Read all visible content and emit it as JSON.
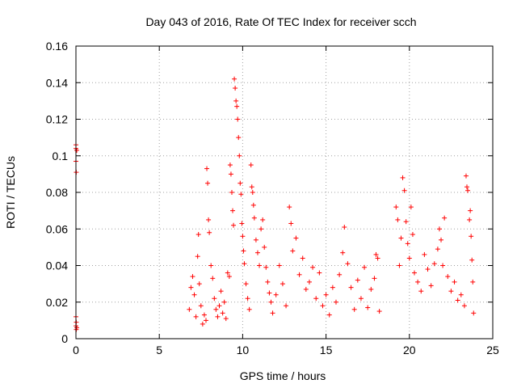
{
  "chart_data": {
    "type": "scatter",
    "title": "Day 043 of 2016, Rate Of TEC Index for receiver scch",
    "xlabel": "GPS time / hours",
    "ylabel": "ROTI / TECUs",
    "xlim": [
      0,
      25
    ],
    "ylim": [
      0,
      0.16
    ],
    "xticks": [
      0,
      5,
      10,
      15,
      20,
      25
    ],
    "xtick_labels": [
      "0",
      "5",
      "10",
      "15",
      "20",
      "25"
    ],
    "yticks": [
      0,
      0.02,
      0.04,
      0.06,
      0.08,
      0.1,
      0.12,
      0.14,
      0.16
    ],
    "ytick_labels": [
      "0",
      "0.02",
      "0.04",
      "0.06",
      "0.08",
      "0.1",
      "0.12",
      "0.14",
      "0.16"
    ],
    "grid": true,
    "marker": "+",
    "series": [
      {
        "name": "ROTI",
        "color": "#ff0000",
        "points": [
          [
            0.0,
            0.106
          ],
          [
            0.0,
            0.104
          ],
          [
            0.05,
            0.103
          ],
          [
            0.0,
            0.097
          ],
          [
            0.02,
            0.091
          ],
          [
            0.0,
            0.012
          ],
          [
            0.02,
            0.009
          ],
          [
            0.0,
            0.007
          ],
          [
            0.05,
            0.006
          ],
          [
            0.02,
            0.005
          ],
          [
            6.8,
            0.016
          ],
          [
            6.9,
            0.028
          ],
          [
            7.0,
            0.034
          ],
          [
            7.1,
            0.024
          ],
          [
            7.2,
            0.012
          ],
          [
            7.3,
            0.045
          ],
          [
            7.35,
            0.057
          ],
          [
            7.4,
            0.03
          ],
          [
            7.5,
            0.018
          ],
          [
            7.6,
            0.008
          ],
          [
            7.7,
            0.013
          ],
          [
            7.8,
            0.01
          ],
          [
            7.85,
            0.093
          ],
          [
            7.9,
            0.085
          ],
          [
            7.95,
            0.065
          ],
          [
            8.0,
            0.058
          ],
          [
            8.1,
            0.04
          ],
          [
            8.2,
            0.033
          ],
          [
            8.3,
            0.022
          ],
          [
            8.4,
            0.016
          ],
          [
            8.5,
            0.012
          ],
          [
            8.6,
            0.018
          ],
          [
            8.7,
            0.026
          ],
          [
            8.8,
            0.014
          ],
          [
            8.9,
            0.02
          ],
          [
            9.0,
            0.011
          ],
          [
            9.1,
            0.036
          ],
          [
            9.2,
            0.034
          ],
          [
            9.25,
            0.095
          ],
          [
            9.3,
            0.09
          ],
          [
            9.35,
            0.08
          ],
          [
            9.4,
            0.07
          ],
          [
            9.45,
            0.062
          ],
          [
            9.5,
            0.142
          ],
          [
            9.55,
            0.137
          ],
          [
            9.6,
            0.13
          ],
          [
            9.65,
            0.127
          ],
          [
            9.7,
            0.12
          ],
          [
            9.75,
            0.11
          ],
          [
            9.8,
            0.1
          ],
          [
            9.85,
            0.085
          ],
          [
            9.9,
            0.079
          ],
          [
            9.95,
            0.063
          ],
          [
            10.0,
            0.056
          ],
          [
            10.05,
            0.048
          ],
          [
            10.1,
            0.041
          ],
          [
            10.2,
            0.03
          ],
          [
            10.3,
            0.022
          ],
          [
            10.4,
            0.016
          ],
          [
            10.5,
            0.095
          ],
          [
            10.55,
            0.083
          ],
          [
            10.6,
            0.08
          ],
          [
            10.65,
            0.073
          ],
          [
            10.7,
            0.066
          ],
          [
            10.8,
            0.054
          ],
          [
            10.9,
            0.047
          ],
          [
            11.0,
            0.04
          ],
          [
            11.1,
            0.06
          ],
          [
            11.2,
            0.065
          ],
          [
            11.3,
            0.05
          ],
          [
            11.4,
            0.039
          ],
          [
            11.5,
            0.031
          ],
          [
            11.6,
            0.025
          ],
          [
            11.7,
            0.02
          ],
          [
            11.8,
            0.014
          ],
          [
            12.0,
            0.024
          ],
          [
            12.2,
            0.04
          ],
          [
            12.4,
            0.03
          ],
          [
            12.6,
            0.018
          ],
          [
            12.8,
            0.072
          ],
          [
            12.9,
            0.063
          ],
          [
            13.0,
            0.048
          ],
          [
            13.2,
            0.055
          ],
          [
            13.4,
            0.035
          ],
          [
            13.6,
            0.044
          ],
          [
            13.8,
            0.027
          ],
          [
            14.0,
            0.031
          ],
          [
            14.2,
            0.039
          ],
          [
            14.4,
            0.022
          ],
          [
            14.6,
            0.036
          ],
          [
            14.8,
            0.018
          ],
          [
            15.0,
            0.024
          ],
          [
            15.2,
            0.013
          ],
          [
            15.4,
            0.028
          ],
          [
            15.6,
            0.02
          ],
          [
            15.8,
            0.035
          ],
          [
            16.0,
            0.047
          ],
          [
            16.1,
            0.061
          ],
          [
            16.3,
            0.041
          ],
          [
            16.5,
            0.028
          ],
          [
            16.7,
            0.016
          ],
          [
            16.9,
            0.032
          ],
          [
            17.1,
            0.022
          ],
          [
            17.3,
            0.039
          ],
          [
            17.5,
            0.017
          ],
          [
            17.7,
            0.027
          ],
          [
            17.9,
            0.033
          ],
          [
            18.0,
            0.046
          ],
          [
            18.1,
            0.044
          ],
          [
            18.2,
            0.015
          ],
          [
            19.2,
            0.072
          ],
          [
            19.3,
            0.065
          ],
          [
            19.4,
            0.04
          ],
          [
            19.5,
            0.055
          ],
          [
            19.6,
            0.088
          ],
          [
            19.7,
            0.081
          ],
          [
            19.8,
            0.064
          ],
          [
            19.9,
            0.052
          ],
          [
            20.0,
            0.044
          ],
          [
            20.1,
            0.072
          ],
          [
            20.2,
            0.057
          ],
          [
            20.3,
            0.036
          ],
          [
            20.5,
            0.031
          ],
          [
            20.7,
            0.026
          ],
          [
            20.9,
            0.046
          ],
          [
            21.1,
            0.038
          ],
          [
            21.3,
            0.029
          ],
          [
            21.5,
            0.041
          ],
          [
            21.7,
            0.049
          ],
          [
            21.8,
            0.06
          ],
          [
            21.9,
            0.054
          ],
          [
            22.0,
            0.04
          ],
          [
            22.1,
            0.066
          ],
          [
            22.3,
            0.034
          ],
          [
            22.5,
            0.026
          ],
          [
            22.7,
            0.031
          ],
          [
            22.9,
            0.021
          ],
          [
            23.1,
            0.024
          ],
          [
            23.3,
            0.018
          ],
          [
            23.4,
            0.089
          ],
          [
            23.45,
            0.083
          ],
          [
            23.5,
            0.081
          ],
          [
            23.6,
            0.065
          ],
          [
            23.65,
            0.07
          ],
          [
            23.7,
            0.056
          ],
          [
            23.75,
            0.043
          ],
          [
            23.8,
            0.031
          ],
          [
            23.85,
            0.014
          ]
        ]
      }
    ]
  }
}
